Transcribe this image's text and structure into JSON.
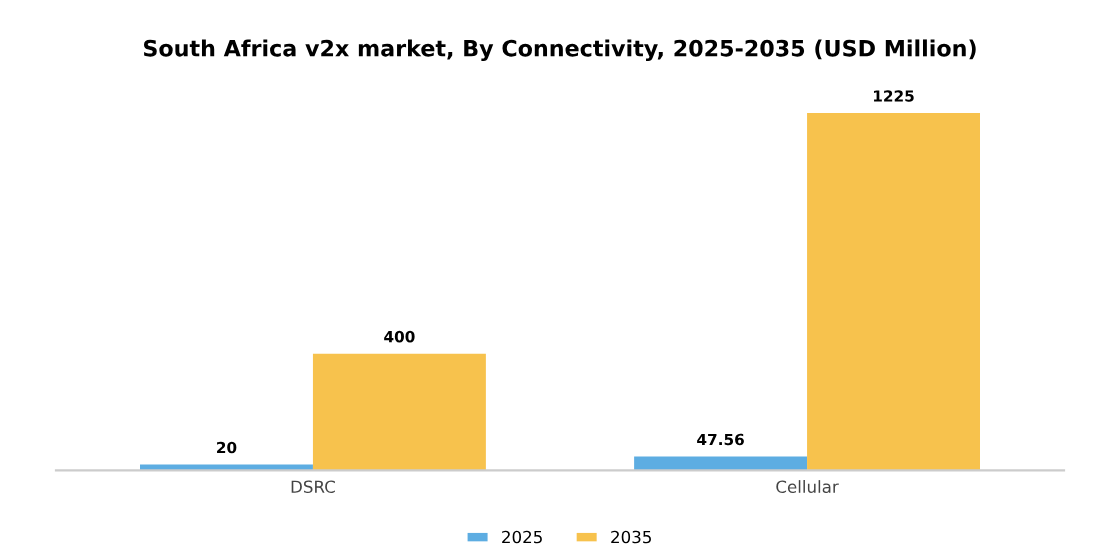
{
  "chart_data": {
    "type": "bar",
    "title": "South Africa v2x market, By Connectivity, 2025-2035 (USD Million)",
    "categories": [
      "DSRC",
      "Cellular"
    ],
    "series": [
      {
        "name": "2025",
        "color": "#5dade2",
        "values": [
          20,
          47.56
        ]
      },
      {
        "name": "2035",
        "color": "#f7c24d",
        "values": [
          400,
          1225
        ]
      }
    ],
    "data_labels": true,
    "legend": "bottom",
    "grid": false
  }
}
